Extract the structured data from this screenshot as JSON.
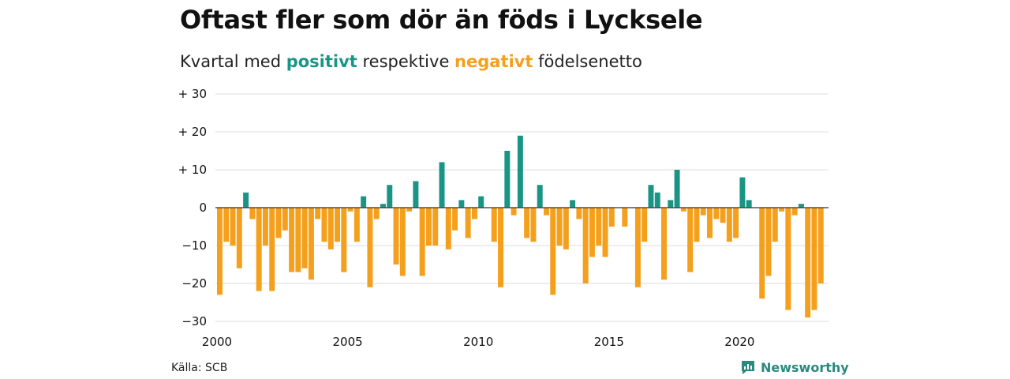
{
  "title": "Oftast fler som dör än föds i Lycksele",
  "subtitle": {
    "prefix": "Kvartal med ",
    "positive_word": "positivt",
    "middle": " respektive ",
    "negative_word": "negativt",
    "suffix": " födelsenetto"
  },
  "source": "Källa: SCB",
  "brand": "Newsworthy",
  "colors": {
    "positive": "#1a9585",
    "negative": "#f5a01d",
    "grid": "#dddddd",
    "zero_line": "#333333",
    "brand": "#2a8a7e"
  },
  "chart_data": {
    "type": "bar",
    "x_start": "2000",
    "x_unit": "quarter",
    "ylim": [
      -30,
      30
    ],
    "yticks": [
      30,
      20,
      10,
      0,
      -10,
      -20,
      -30
    ],
    "ytick_labels": [
      "+ 30",
      "+ 20",
      "+ 10",
      "0",
      "−10",
      "−20",
      "−30"
    ],
    "xticks": [
      "2000",
      "2005",
      "2010",
      "2015",
      "2020"
    ],
    "grid": true,
    "values": [
      -23,
      -9,
      -10,
      -16,
      4,
      -3,
      -22,
      -10,
      -22,
      -8,
      -6,
      -17,
      -17,
      -16,
      -19,
      -3,
      -9,
      -11,
      -9,
      -17,
      -1,
      -9,
      3,
      -21,
      -3,
      1,
      6,
      -15,
      -18,
      -1,
      7,
      -18,
      -10,
      -10,
      12,
      -11,
      -6,
      2,
      -8,
      -3,
      3,
      0,
      -9,
      -21,
      15,
      -2,
      19,
      -8,
      -9,
      6,
      -2,
      -23,
      -10,
      -11,
      2,
      -3,
      -20,
      -13,
      -10,
      -13,
      -5,
      0,
      -5,
      0,
      -21,
      -9,
      6,
      4,
      -19,
      2,
      10,
      -1,
      -17,
      -9,
      -2,
      -8,
      -3,
      -4,
      -9,
      -8,
      8,
      2,
      0,
      -24,
      -18,
      -9,
      -1,
      -27,
      -2,
      1,
      -29,
      -27,
      -20
    ]
  }
}
